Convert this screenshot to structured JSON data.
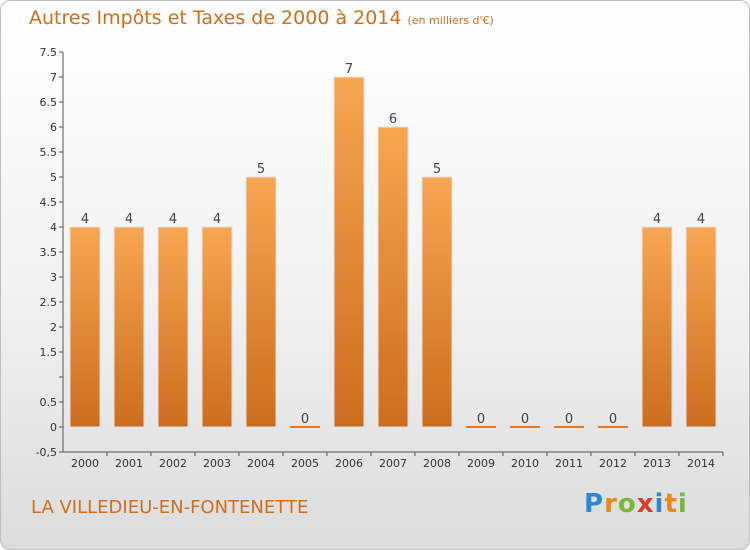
{
  "header": {
    "title": "Autres Impôts et Taxes de 2000 à 2014",
    "unit": "(en milliers d'€)"
  },
  "footer": {
    "commune": "LA VILLEDIEU-EN-FONTENETTE",
    "logo_letters": [
      "P",
      "r",
      "o",
      "x",
      "i",
      "t",
      "i"
    ]
  },
  "colors": {
    "bar_light": "#f7a651",
    "bar_dark": "#cc6d1d",
    "zero_bar": "#e07b22",
    "text": "#d06e1c",
    "axis": "#555555"
  },
  "chart_data": {
    "type": "bar",
    "categories": [
      "2000",
      "2001",
      "2002",
      "2003",
      "2004",
      "2005",
      "2006",
      "2007",
      "2008",
      "2009",
      "2010",
      "2011",
      "2012",
      "2013",
      "2014"
    ],
    "values": [
      4,
      4,
      4,
      4,
      5,
      0,
      7,
      6,
      5,
      0,
      0,
      0,
      0,
      4,
      4
    ],
    "data_labels": [
      "4",
      "4",
      "4",
      "4",
      "5",
      "0",
      "7",
      "6",
      "5",
      "0",
      "0",
      "0",
      "0",
      "4",
      "4"
    ],
    "ylim": [
      -0.5,
      7.5
    ],
    "yticks": [
      -0.5,
      0,
      0.5,
      1,
      1.5,
      2,
      2.5,
      3,
      3.5,
      4,
      4.5,
      5,
      5.5,
      6,
      6.5,
      7,
      7.5
    ],
    "ytick_labels": [
      "-0,5",
      "0",
      "0.5",
      "",
      "1.5",
      "2",
      "2.5",
      "3",
      "3.5",
      "4",
      "4.5",
      "5",
      "5.5",
      "6",
      "6.5",
      "7",
      "7.5"
    ],
    "grid": false,
    "legend": "none"
  }
}
